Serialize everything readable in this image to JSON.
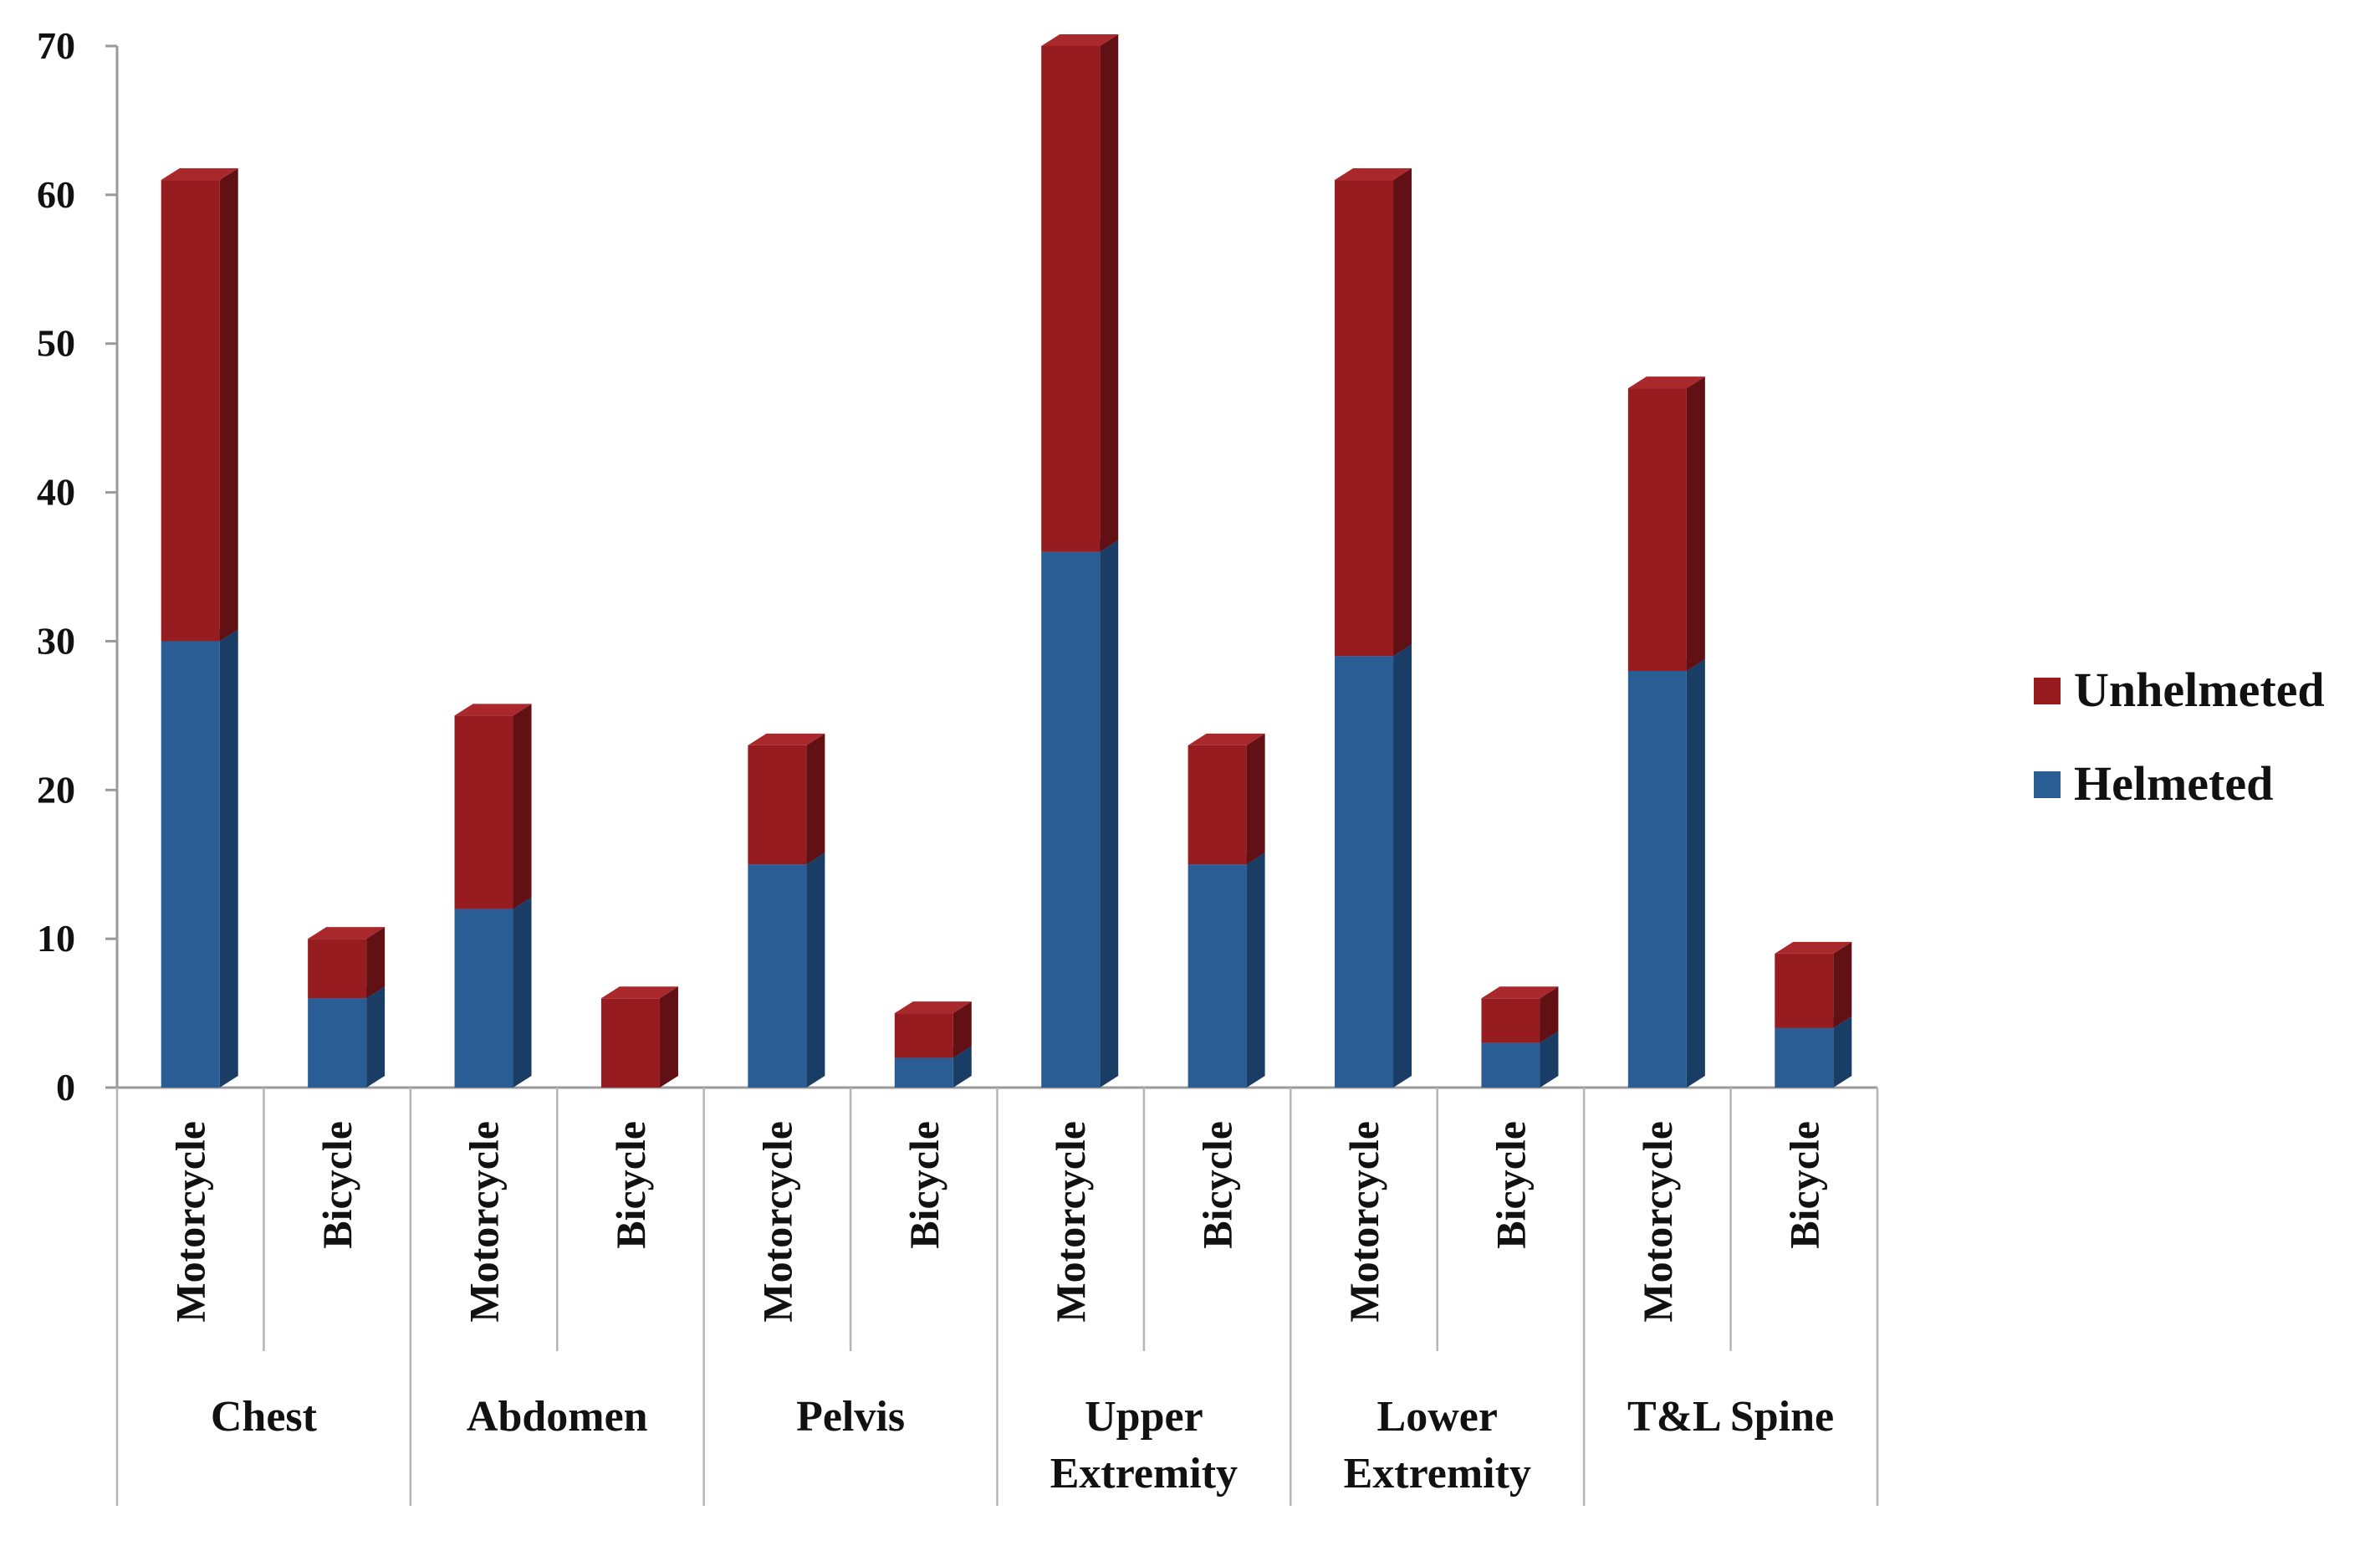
{
  "chart_data": {
    "type": "bar",
    "stacked": true,
    "style": "3d-column",
    "groups": [
      "Chest",
      "Abdomen",
      "Pelvis",
      "Upper Extremity",
      "Lower Extremity",
      "T&L Spine"
    ],
    "subcategories": [
      "Motorcycle",
      "Bicycle"
    ],
    "categories": [
      "Chest Motorcycle",
      "Chest Bicycle",
      "Abdomen Motorcycle",
      "Abdomen Bicycle",
      "Pelvis Motorcycle",
      "Pelvis Bicycle",
      "Upper Extremity Motorcycle",
      "Upper Extremity Bicycle",
      "Lower Extremity Motorcycle",
      "Lower Extremity Bicycle",
      "T&L Spine Motorcycle",
      "T&L Spine Bicycle"
    ],
    "series": [
      {
        "name": "Helmeted",
        "color": "#2a5d93",
        "side_color": "#1a3d66",
        "top_color": "#3f73aa",
        "values": [
          30,
          6,
          12,
          0,
          15,
          2,
          36,
          15,
          29,
          3,
          28,
          4
        ]
      },
      {
        "name": "Unhelmeted",
        "color": "#961c20",
        "side_color": "#611013",
        "top_color": "#a8282c",
        "values": [
          31,
          4,
          13,
          6,
          8,
          3,
          34,
          8,
          32,
          3,
          19,
          5
        ]
      }
    ],
    "ylim": [
      0,
      70
    ],
    "yticks": [
      0,
      10,
      20,
      30,
      40,
      50,
      60,
      70
    ],
    "grid": false,
    "legend": "right",
    "legend_order": [
      "Unhelmeted",
      "Helmeted"
    ]
  }
}
